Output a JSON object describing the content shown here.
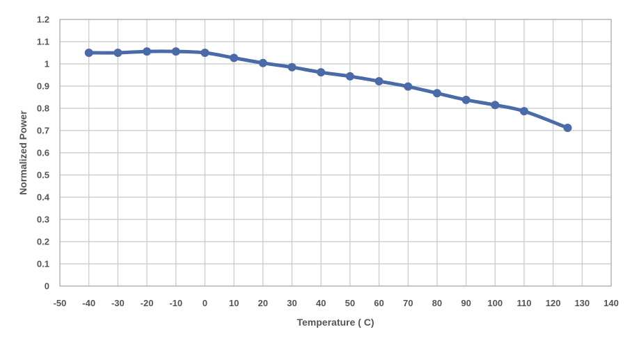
{
  "chart_data": {
    "type": "line",
    "title": "",
    "xlabel": "Temperature ( C)",
    "ylabel": "Normalized Power",
    "xlim": [
      -50,
      140
    ],
    "ylim": [
      0,
      1.2
    ],
    "x_ticks": [
      "-50",
      "-40",
      "-30",
      "-20",
      "-10",
      "0",
      "10",
      "20",
      "30",
      "40",
      "50",
      "60",
      "70",
      "80",
      "90",
      "100",
      "110",
      "120",
      "130",
      "140"
    ],
    "y_ticks": [
      "0",
      "0.1",
      "0.2",
      "0.3",
      "0.4",
      "0.5",
      "0.6",
      "0.7",
      "0.8",
      "0.9",
      "1",
      "1.1",
      "1.2"
    ],
    "grid": true,
    "legend": "none",
    "series": [
      {
        "color": "#4a6aa8",
        "x": [
          -40,
          -30,
          -20,
          -10,
          0,
          10,
          20,
          30,
          40,
          50,
          60,
          70,
          80,
          90,
          100,
          110,
          125
        ],
        "y": [
          1.05,
          1.05,
          1.056,
          1.056,
          1.05,
          1.027,
          1.004,
          0.985,
          0.962,
          0.944,
          0.922,
          0.898,
          0.868,
          0.838,
          0.815,
          0.787,
          0.712
        ]
      }
    ]
  }
}
